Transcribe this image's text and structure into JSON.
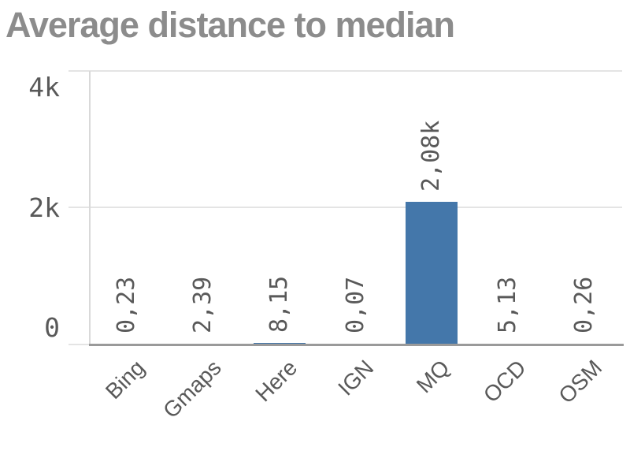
{
  "title": "Average distance to median",
  "chart_data": {
    "type": "bar",
    "title": "Average distance to median",
    "categories": [
      "Bing",
      "Gmaps",
      "Here",
      "IGN",
      "MQ",
      "OCD",
      "OSM"
    ],
    "values": [
      0.23,
      2.39,
      8.15,
      0.07,
      2080,
      5.13,
      0.26
    ],
    "value_labels": [
      "0,23",
      "2,39",
      "8,15",
      "0,07",
      "2,08k",
      "5,13",
      "0,26"
    ],
    "xlabel": "",
    "ylabel": "",
    "ylim": [
      0,
      4000
    ],
    "yticks": [
      {
        "value": 0,
        "label": "0"
      },
      {
        "value": 2000,
        "label": "2k"
      },
      {
        "value": 4000,
        "label": "4k"
      }
    ],
    "grid": true,
    "legend": false,
    "bar_color": "#4477aa"
  },
  "colors": {
    "bar": "#4477aa",
    "gridline": "#e4e4e4",
    "axis_line": "#d9d9d9",
    "baseline": "#9a9a9a",
    "tick_text": "#595959",
    "label_text": "#595959",
    "title_text": "#8c8c8c",
    "background": "#ffffff"
  }
}
